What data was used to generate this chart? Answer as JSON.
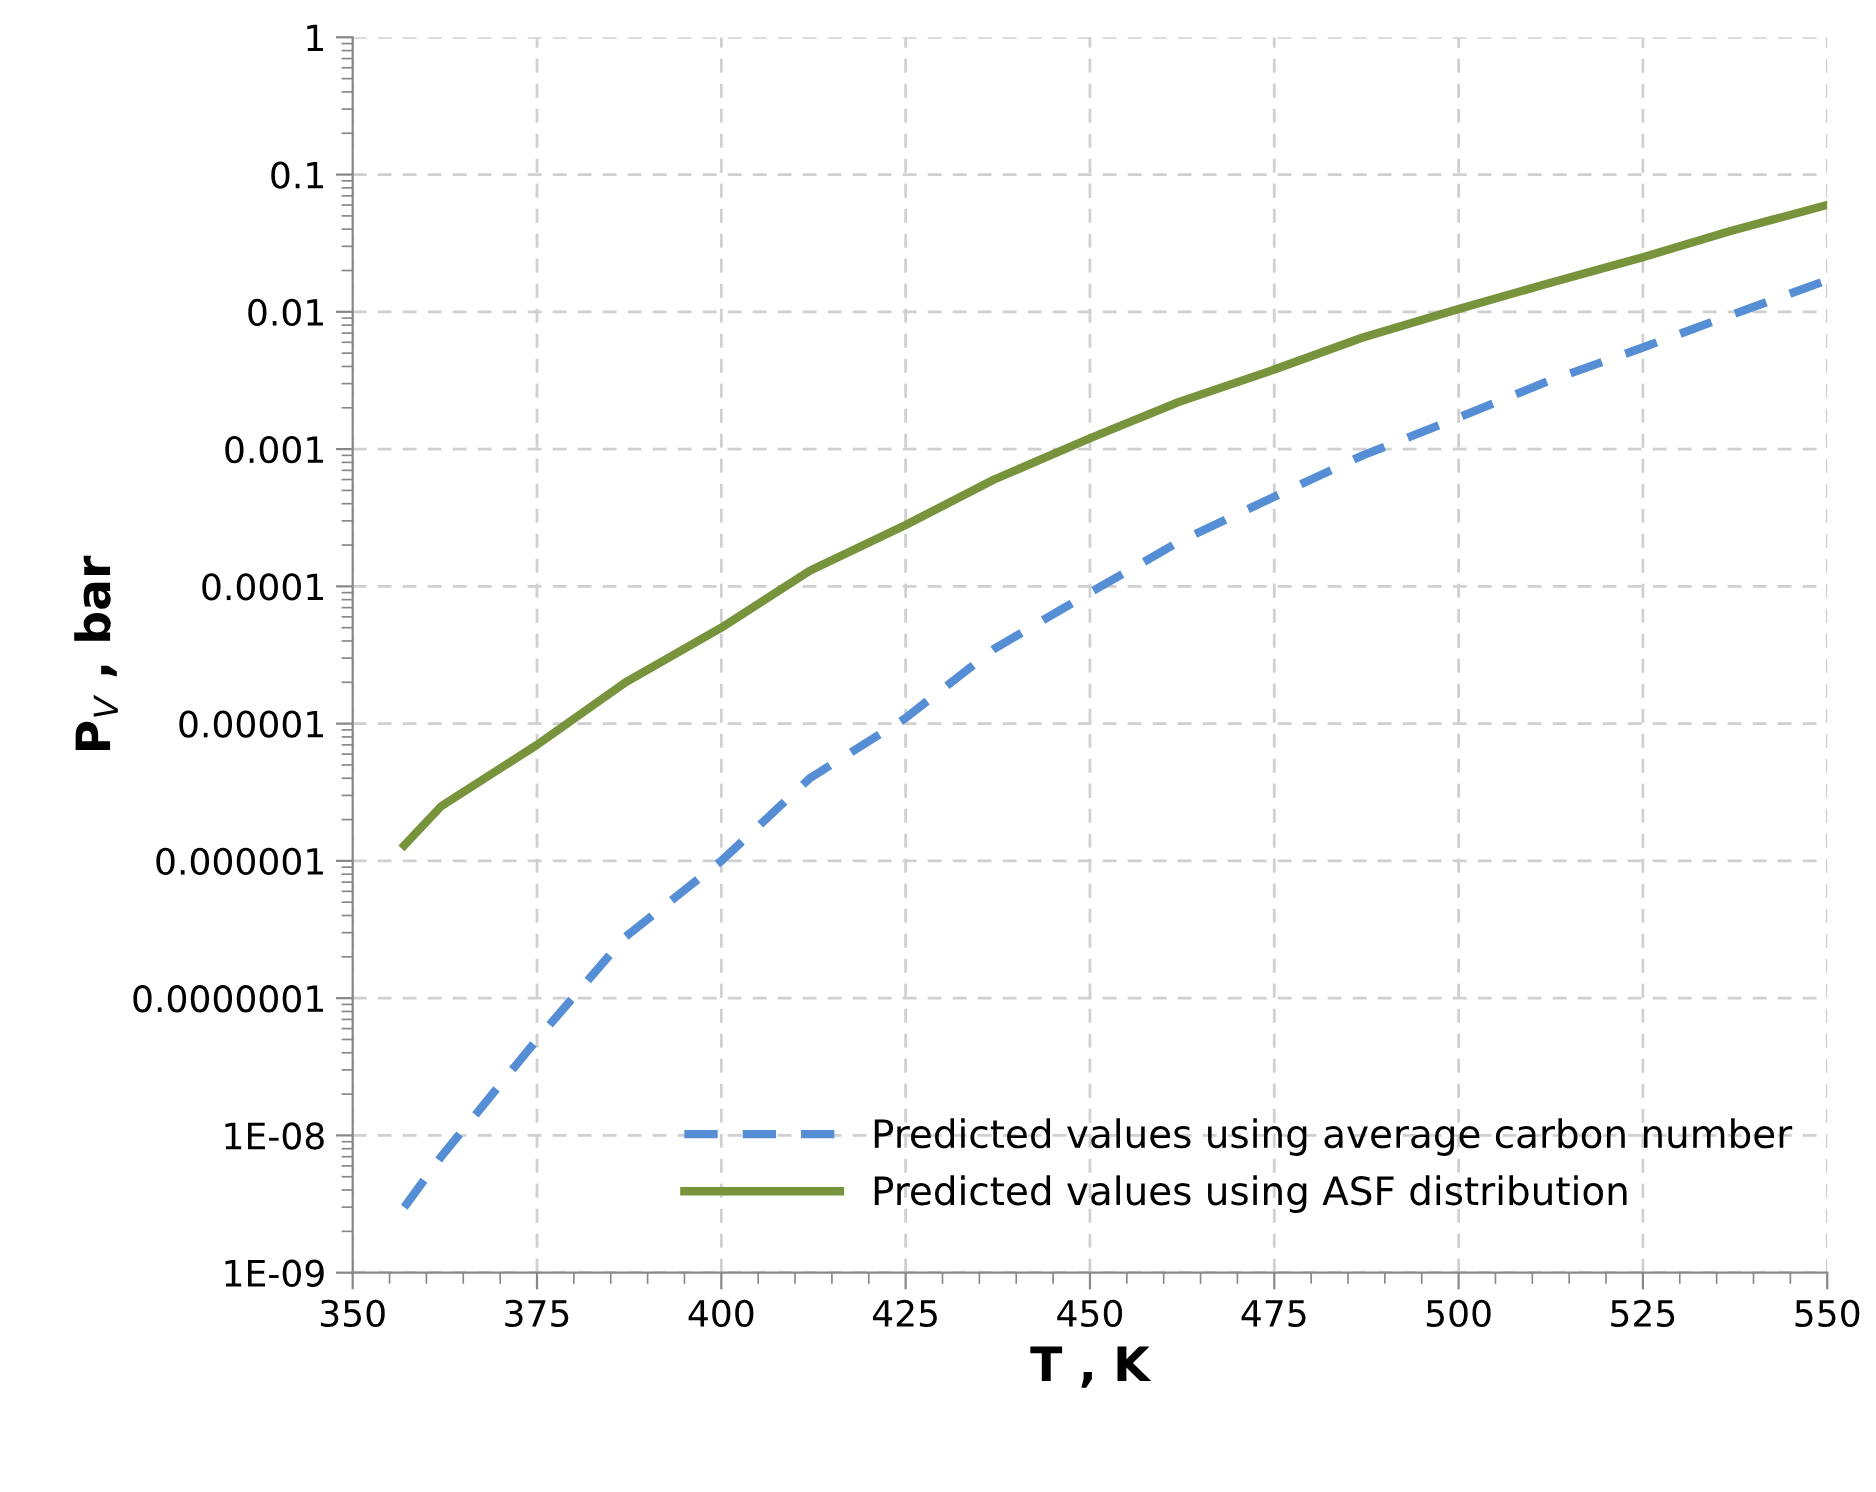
{
  "chart_data": {
    "type": "line",
    "xlabel": "T , K",
    "ylabel": "P$_{V}$ , bar",
    "log": "y",
    "xlim": [
      350,
      550
    ],
    "xticks": [
      350,
      375,
      400,
      425,
      450,
      475,
      500,
      525,
      550
    ],
    "ylim": [
      1e-09,
      1
    ],
    "yticks": [
      {
        "value": 1,
        "label": "1"
      },
      {
        "value": 0.1,
        "label": "0.1"
      },
      {
        "value": 0.01,
        "label": "0.01"
      },
      {
        "value": 0.001,
        "label": "0.001"
      },
      {
        "value": 0.0001,
        "label": "0.0001"
      },
      {
        "value": 1e-05,
        "label": "0.00001"
      },
      {
        "value": 1e-06,
        "label": "0.000001"
      },
      {
        "value": 1e-07,
        "label": "0.0000001"
      },
      {
        "value": 1e-08,
        "label": "1E-08"
      },
      {
        "value": 1e-09,
        "label": "1E-09"
      }
    ],
    "grid": true,
    "legend": "bottom right",
    "marker": "none",
    "series": [
      {
        "name": "Predicted values using average carbon number",
        "color": "#558ed5",
        "line_style": "dashed",
        "x": [
          357,
          362,
          375,
          387,
          400,
          412,
          425,
          437,
          450,
          462,
          475,
          487,
          500,
          512,
          525,
          537,
          550
        ],
        "values": [
          3e-09,
          7e-09,
          5e-08,
          2.8e-07,
          1e-06,
          4e-06,
          1.1e-05,
          3.5e-05,
          9e-05,
          0.00021,
          0.00045,
          0.0009,
          0.0017,
          0.0031,
          0.0055,
          0.0095,
          0.017
        ]
      },
      {
        "name": "Predicted values using ASF distribution",
        "color": "#77933c",
        "line_style": "solid",
        "x": [
          357,
          362,
          375,
          387,
          400,
          412,
          425,
          437,
          450,
          462,
          475,
          487,
          500,
          512,
          525,
          537,
          550
        ],
        "values": [
          1.3e-06,
          2.5e-06,
          7e-06,
          2e-05,
          5e-05,
          0.00013,
          0.00028,
          0.0006,
          0.0012,
          0.0022,
          0.0038,
          0.0065,
          0.0105,
          0.016,
          0.025,
          0.039,
          0.06
        ]
      }
    ]
  }
}
